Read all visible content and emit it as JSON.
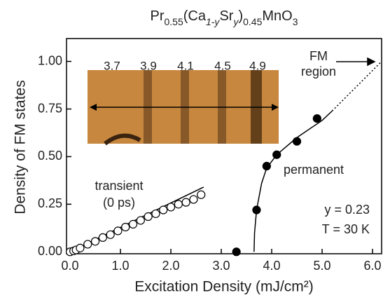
{
  "chart_data": {
    "type": "scatter",
    "title_parts": [
      "Pr",
      "0.55",
      "(Ca",
      "1-y",
      "Sr",
      "y",
      ")",
      "0.45",
      "MnO",
      "3"
    ],
    "xlabel": "Excitation Density (mJ/cm²)",
    "ylabel": "Density of FM states",
    "xlim": [
      -0.07,
      6.18
    ],
    "ylim": [
      -0.01,
      1.12
    ],
    "xticks": [
      {
        "value": 0,
        "label": "0.0"
      },
      {
        "value": 1,
        "label": "1.0"
      },
      {
        "value": 2,
        "label": "2.0"
      },
      {
        "value": 3,
        "label": "3.0"
      },
      {
        "value": 4,
        "label": "4.0"
      },
      {
        "value": 5,
        "label": "5.0"
      },
      {
        "value": 6,
        "label": "6.0"
      }
    ],
    "yticks": [
      {
        "value": 0,
        "label": "0.00"
      },
      0.25,
      {
        "value": 0.5,
        "label": "0.50"
      },
      0.75,
      {
        "value": 1,
        "label": "1.00"
      }
    ],
    "series": [
      {
        "name": "transient",
        "marker": "open",
        "color": "#000000",
        "x": [
          0,
          0.07,
          0.12,
          0.2,
          0.35,
          0.5,
          0.65,
          0.8,
          0.95,
          1.1,
          1.25,
          1.4,
          1.55,
          1.7,
          1.85,
          2.0,
          2.15,
          2.3,
          2.45,
          2.6
        ],
        "values": [
          0,
          0.005,
          0.01,
          0.02,
          0.04,
          0.055,
          0.075,
          0.09,
          0.11,
          0.13,
          0.145,
          0.165,
          0.185,
          0.2,
          0.22,
          0.235,
          0.25,
          0.26,
          0.275,
          0.3
        ]
      },
      {
        "name": "permanent",
        "marker": "filled",
        "color": "#000000",
        "x": [
          3.3,
          3.7,
          3.9,
          4.1,
          4.5,
          4.9
        ],
        "values": [
          0,
          0.22,
          0.45,
          0.51,
          0.58,
          0.7
        ]
      }
    ],
    "fits": [
      {
        "style": "solid",
        "x": [
          0,
          2.65
        ],
        "values": [
          0,
          0.34
        ]
      },
      {
        "style": "solid",
        "x": [
          3.65,
          3.66,
          3.7,
          3.8,
          3.9,
          4.1,
          4.5,
          5.0,
          5.2
        ],
        "values": [
          0,
          0.1,
          0.22,
          0.36,
          0.44,
          0.51,
          0.6,
          0.69,
          0.74
        ]
      },
      {
        "style": "dotted",
        "x": [
          5.2,
          6.18
        ],
        "values": [
          0.74,
          1.0
        ]
      }
    ],
    "annotations": {
      "transient_note": "(0 ps)",
      "fm_line1": "FM",
      "fm_line2": "region",
      "param_y": "y = 0.23",
      "param_T": "T = 30 K"
    },
    "inset_labels": [
      "3.7",
      "3.9",
      "4.1",
      "4.5",
      "4.9"
    ]
  }
}
